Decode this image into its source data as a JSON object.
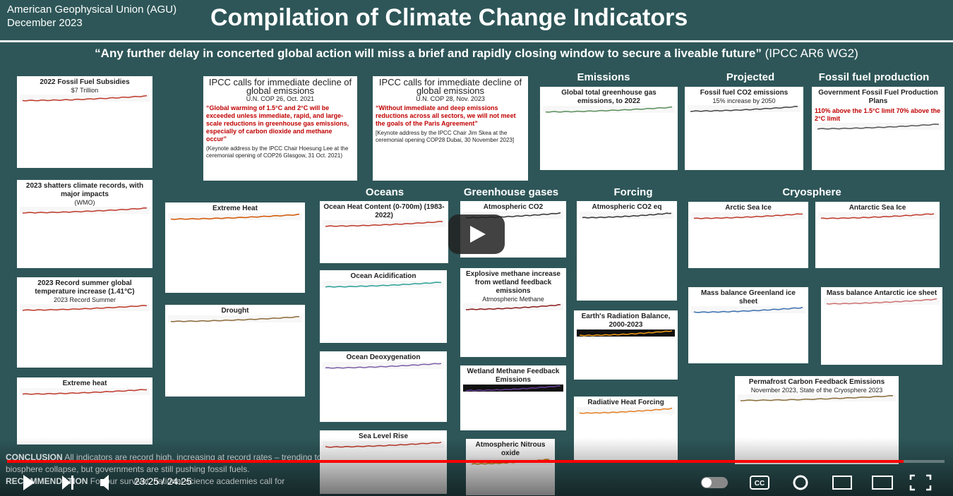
{
  "header": {
    "org": "American Geophysical Union (AGU)",
    "date": "December 2023",
    "title": "Compilation of Climate Change Indicators"
  },
  "quote": {
    "text": "“Any further delay in concerted global action will miss a brief and rapidly closing window to secure a liveable future”",
    "source": "(IPCC AR6 WG2)"
  },
  "sections": [
    "Emissions",
    "Projected",
    "Fossil fuel production",
    "Oceans",
    "Greenhouse gases",
    "Forcing",
    "Cryosphere"
  ],
  "panels": [
    {
      "title": "2022 Fossil Fuel Subsidies",
      "subtitle": "$7 Trillion"
    },
    {
      "title": "2023 shatters climate records, with major impacts",
      "subtitle": "(WMO)"
    },
    {
      "title": "2023 Record summer global temperature increase (1.41°C)",
      "subtitle": "2023 Record Summer"
    },
    {
      "title": "Extreme heat"
    },
    {
      "title": "IPCC calls for immediate decline of global emissions",
      "subtitle": "U.N. COP 26, Oct. 2021",
      "quote": "“Global warming of 1.5°C and 2°C will be exceeded unless immediate, rapid, and large-scale reductions in greenhouse gas emissions, especially of carbon dioxide and methane occur”",
      "note": "(Keynote address by the IPCC Chair Hoesung Lee at the ceremonial opening of COP26 Glasgow, 31 Oct. 2021)"
    },
    {
      "title": "IPCC calls for immediate decline of global emissions",
      "subtitle": "U.N. COP 28, Nov. 2023",
      "quote": "“Without immediate and deep emissions reductions across all sectors, we will not meet the goals of the Paris Agreement”",
      "note": "[Keynote address by the IPCC Chair Jim Skea at the ceremonial opening COP28 Dubai, 30 November 2023]"
    },
    {
      "title": "Extreme Heat"
    },
    {
      "title": "Drought"
    },
    {
      "title": "Ocean Heat Content (0-700m) (1983-2022)"
    },
    {
      "title": "Ocean Acidification"
    },
    {
      "title": "Ocean Deoxygenation"
    },
    {
      "title": "Sea Level Rise"
    },
    {
      "title": "Atmospheric CO2"
    },
    {
      "title": "Explosive methane increase from wetland feedback emissions",
      "subtitle": "Atmospheric Methane"
    },
    {
      "title": "Wetland Methane Feedback Emissions"
    },
    {
      "title": "Atmospheric Nitrous oxide"
    },
    {
      "title": "Atmospheric CO2 eq"
    },
    {
      "title": "Earth's Radiation Balance, 2000-2023"
    },
    {
      "title": "Radiative Heat Forcing"
    },
    {
      "title": "Global total greenhouse gas emissions, to 2022"
    },
    {
      "title": "Fossil fuel CO2 emissions",
      "subtitle": "15% increase by 2050"
    },
    {
      "title": "Government Fossil Fuel Production Plans",
      "quote": "110% above the 1.5°C limit 70% above the 2°C limit"
    },
    {
      "title": "Arctic Sea Ice"
    },
    {
      "title": "Antarctic Sea Ice"
    },
    {
      "title": "Mass balance Greenland ice sheet"
    },
    {
      "title": "Mass balance Antarctic ice sheet"
    },
    {
      "title": "Permafrost Carbon Feedback Emissions",
      "subtitle": "November 2023, State of the Cryosphere 2023"
    }
  ],
  "conclusion": {
    "label": "CONCLUSION",
    "text": "All indicators are record high, increasing at record rates – trending to biosphere collapse, but governments are still pushing fossil fuels.",
    "label2": "RECOMMENDATION",
    "text2": "For our survival, national science academies call for"
  },
  "player": {
    "time": "23:25 / 24:25"
  }
}
